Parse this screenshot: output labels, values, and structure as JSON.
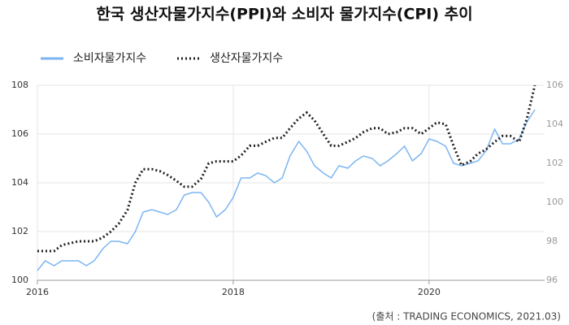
{
  "chart_data": {
    "type": "line",
    "title": "한국 생산자물가지수(PPI)와 소비자 물가지수(CPI) 추이",
    "source": "(출처 : TRADING ECONOMICS, 2021.03)",
    "x": [
      2016,
      2016.08,
      2016.17,
      2016.25,
      2016.33,
      2016.42,
      2016.5,
      2016.58,
      2016.67,
      2016.75,
      2016.83,
      2016.92,
      2017,
      2017.08,
      2017.17,
      2017.25,
      2017.33,
      2017.42,
      2017.5,
      2017.58,
      2017.67,
      2017.75,
      2017.83,
      2017.92,
      2018,
      2018.08,
      2018.17,
      2018.25,
      2018.33,
      2018.42,
      2018.5,
      2018.58,
      2018.67,
      2018.75,
      2018.83,
      2018.92,
      2019,
      2019.08,
      2019.17,
      2019.25,
      2019.33,
      2019.42,
      2019.5,
      2019.58,
      2019.67,
      2019.75,
      2019.83,
      2019.92,
      2020,
      2020.08,
      2020.17,
      2020.25,
      2020.33,
      2020.42,
      2020.5,
      2020.58,
      2020.67,
      2020.75,
      2020.83,
      2020.92,
      2021,
      2021.08
    ],
    "series": [
      {
        "name": "소비자물가지수",
        "color": "#7cb5f0",
        "line_style": "solid",
        "axis": "y",
        "values": [
          100.4,
          100.8,
          100.6,
          100.8,
          100.8,
          100.8,
          100.6,
          100.8,
          101.3,
          101.6,
          101.6,
          101.5,
          102.0,
          102.8,
          102.9,
          102.8,
          102.7,
          102.9,
          103.5,
          103.6,
          103.6,
          103.2,
          102.6,
          102.9,
          103.4,
          104.2,
          104.2,
          104.4,
          104.3,
          104.0,
          104.2,
          105.1,
          105.7,
          105.3,
          104.7,
          104.4,
          104.2,
          104.7,
          104.6,
          104.9,
          105.1,
          105.0,
          104.7,
          104.9,
          105.2,
          105.5,
          104.9,
          105.2,
          105.8,
          105.7,
          105.5,
          104.8,
          104.7,
          104.8,
          104.9,
          105.3,
          106.2,
          105.6,
          105.6,
          105.8,
          106.5,
          107.0
        ]
      },
      {
        "name": "생산자물가지수",
        "color": "#222222",
        "line_style": "dotted",
        "axis": "y2",
        "values": [
          97.5,
          97.5,
          97.5,
          97.8,
          97.9,
          98.0,
          98.0,
          98.0,
          98.2,
          98.5,
          98.9,
          99.6,
          101.0,
          101.7,
          101.7,
          101.6,
          101.4,
          101.1,
          100.8,
          100.8,
          101.2,
          102.0,
          102.1,
          102.1,
          102.1,
          102.4,
          102.9,
          102.9,
          103.1,
          103.3,
          103.3,
          103.8,
          104.3,
          104.6,
          104.2,
          103.5,
          102.9,
          102.9,
          103.1,
          103.3,
          103.6,
          103.8,
          103.8,
          103.5,
          103.6,
          103.8,
          103.8,
          103.5,
          103.8,
          104.1,
          104.0,
          102.9,
          101.9,
          102.1,
          102.5,
          102.7,
          103.1,
          103.4,
          103.4,
          103.1,
          104.3,
          106.0
        ]
      }
    ],
    "xlim": [
      2016,
      2021.18
    ],
    "xticks": [
      2016,
      2018,
      2020
    ],
    "ylim": [
      100,
      108
    ],
    "yticks": [
      100,
      102,
      104,
      106,
      108
    ],
    "y2lim": [
      96,
      106
    ],
    "y2ticks": [
      96,
      98,
      100,
      102,
      104,
      106
    ],
    "grid": true
  }
}
